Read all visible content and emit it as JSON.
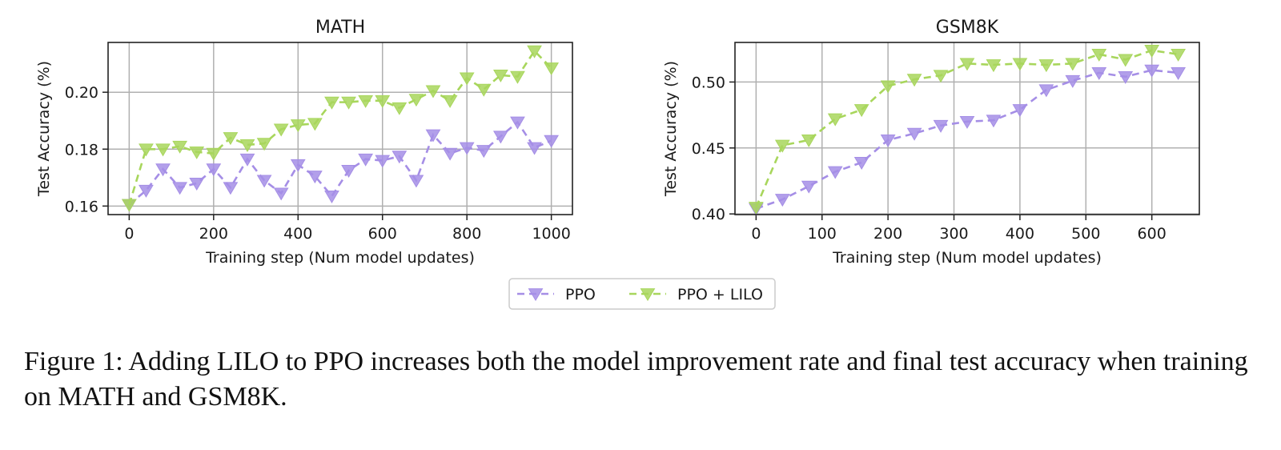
{
  "chart_data": [
    {
      "type": "line",
      "title": "MATH",
      "xlabel": "Training step (Num model updates)",
      "ylabel": "Test Accuracy (%)",
      "xlim": [
        -50,
        1050
      ],
      "ylim": [
        0.157,
        0.2175
      ],
      "xticks": [
        0,
        200,
        400,
        600,
        800,
        1000
      ],
      "xtick_labels": [
        "0",
        "200",
        "400",
        "600",
        "800",
        "1000"
      ],
      "yticks": [
        0.16,
        0.18,
        0.2
      ],
      "ytick_labels": [
        "0.16",
        "0.18",
        "0.20"
      ],
      "grid": true,
      "x": [
        0,
        40,
        80,
        120,
        160,
        200,
        240,
        280,
        320,
        360,
        400,
        440,
        480,
        520,
        560,
        600,
        640,
        680,
        720,
        760,
        800,
        840,
        880,
        920,
        960,
        1000
      ],
      "series": [
        {
          "name": "PPO",
          "values": [
            0.1605,
            0.1655,
            0.173,
            0.1665,
            0.168,
            0.173,
            0.1665,
            0.1765,
            0.169,
            0.1645,
            0.1745,
            0.1705,
            0.1635,
            0.1725,
            0.1765,
            0.176,
            0.1775,
            0.169,
            0.185,
            0.1785,
            0.1805,
            0.1795,
            0.1845,
            0.1895,
            0.1805,
            0.183
          ]
        },
        {
          "name": "PPO + LILO",
          "values": [
            0.1605,
            0.18,
            0.18,
            0.181,
            0.179,
            0.1785,
            0.184,
            0.1815,
            0.182,
            0.187,
            0.1885,
            0.189,
            0.1965,
            0.1965,
            0.197,
            0.197,
            0.1945,
            0.1975,
            0.2005,
            0.197,
            0.205,
            0.201,
            0.206,
            0.2055,
            0.2145,
            0.2085
          ]
        }
      ]
    },
    {
      "type": "line",
      "title": "GSM8K",
      "xlabel": "Training step (Num model updates)",
      "ylabel": "Test Accuracy (%)",
      "xlim": [
        -32,
        672
      ],
      "ylim": [
        0.3995,
        0.53
      ],
      "xticks": [
        0,
        100,
        200,
        300,
        400,
        500,
        600
      ],
      "xtick_labels": [
        "0",
        "100",
        "200",
        "300",
        "400",
        "500",
        "600"
      ],
      "yticks": [
        0.4,
        0.45,
        0.5
      ],
      "ytick_labels": [
        "0.40",
        "0.45",
        "0.50"
      ],
      "grid": true,
      "x": [
        0,
        40,
        80,
        120,
        160,
        200,
        240,
        280,
        320,
        360,
        400,
        440,
        480,
        520,
        560,
        600,
        640
      ],
      "series": [
        {
          "name": "PPO",
          "values": [
            0.404,
            0.411,
            0.421,
            0.432,
            0.439,
            0.456,
            0.461,
            0.467,
            0.47,
            0.471,
            0.479,
            0.494,
            0.501,
            0.507,
            0.504,
            0.509,
            0.507
          ]
        },
        {
          "name": "PPO + LILO",
          "values": [
            0.405,
            0.452,
            0.456,
            0.472,
            0.479,
            0.497,
            0.502,
            0.505,
            0.514,
            0.513,
            0.514,
            0.513,
            0.514,
            0.521,
            0.517,
            0.524,
            0.521
          ]
        }
      ]
    }
  ],
  "legend": {
    "placement": "bottom-center",
    "entries": [
      {
        "name": "PPO",
        "color": "#a58ee6"
      },
      {
        "name": "PPO + LILO",
        "color": "#a8d65c"
      }
    ]
  },
  "colors": {
    "ppo": "#a58ee6",
    "lilo": "#a8d65c",
    "grid": "#b0b0b0",
    "axes": "#222222"
  },
  "caption": "Figure 1: Adding LILO to PPO increases both the model improvement rate and final test accuracy when training on MATH and GSM8K."
}
